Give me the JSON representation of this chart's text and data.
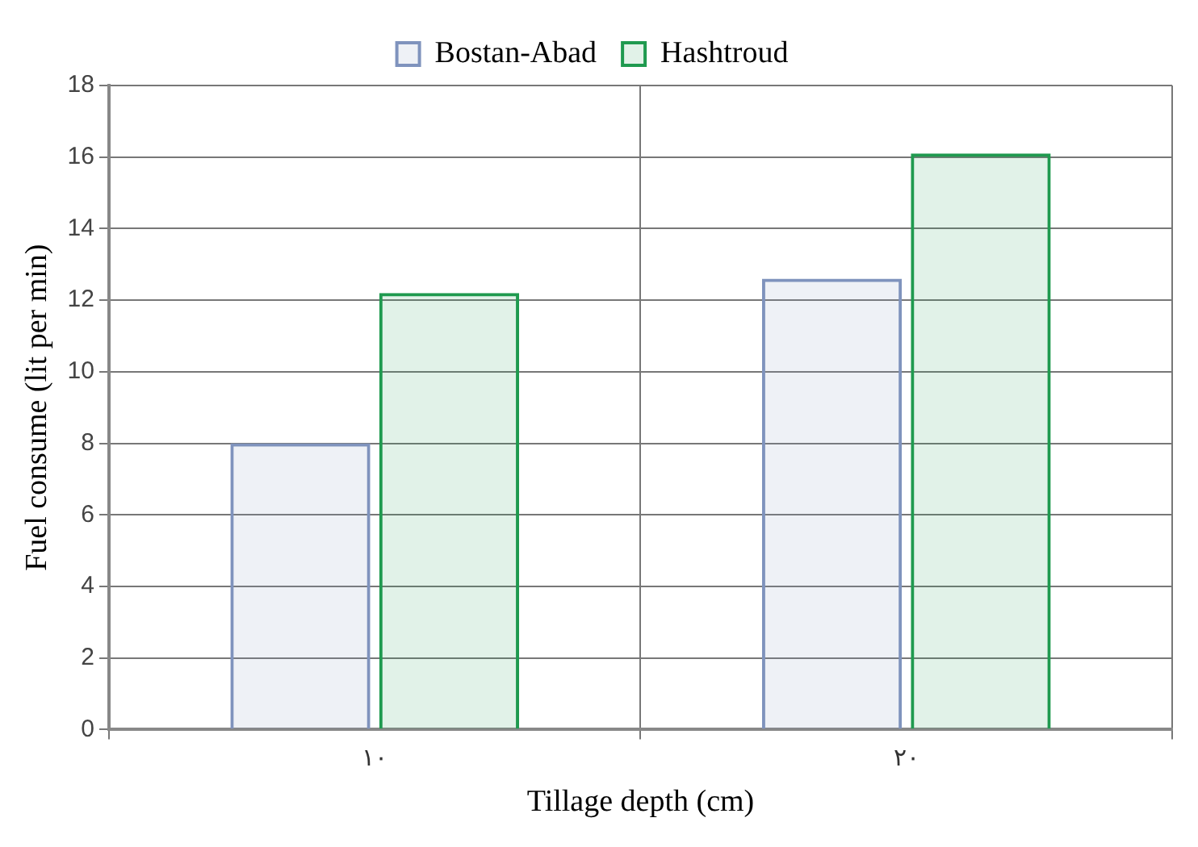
{
  "chart_data": {
    "type": "bar",
    "xlabel": "Tillage depth (cm)",
    "ylabel": "Fuel consume (lit per min)",
    "categories": [
      "۱۰",
      "۲۰"
    ],
    "series": [
      {
        "name": "Bostan-Abad",
        "color": "#7f93bd",
        "values": [
          8,
          12.6
        ]
      },
      {
        "name": "Hashtroud",
        "color": "#1f9a4f",
        "values": [
          12.2,
          16.1
        ]
      }
    ],
    "ylim": [
      0,
      18
    ],
    "yticks": [
      0,
      2,
      4,
      6,
      8,
      10,
      12,
      14,
      16,
      18
    ],
    "grid": true,
    "legend": "top"
  }
}
